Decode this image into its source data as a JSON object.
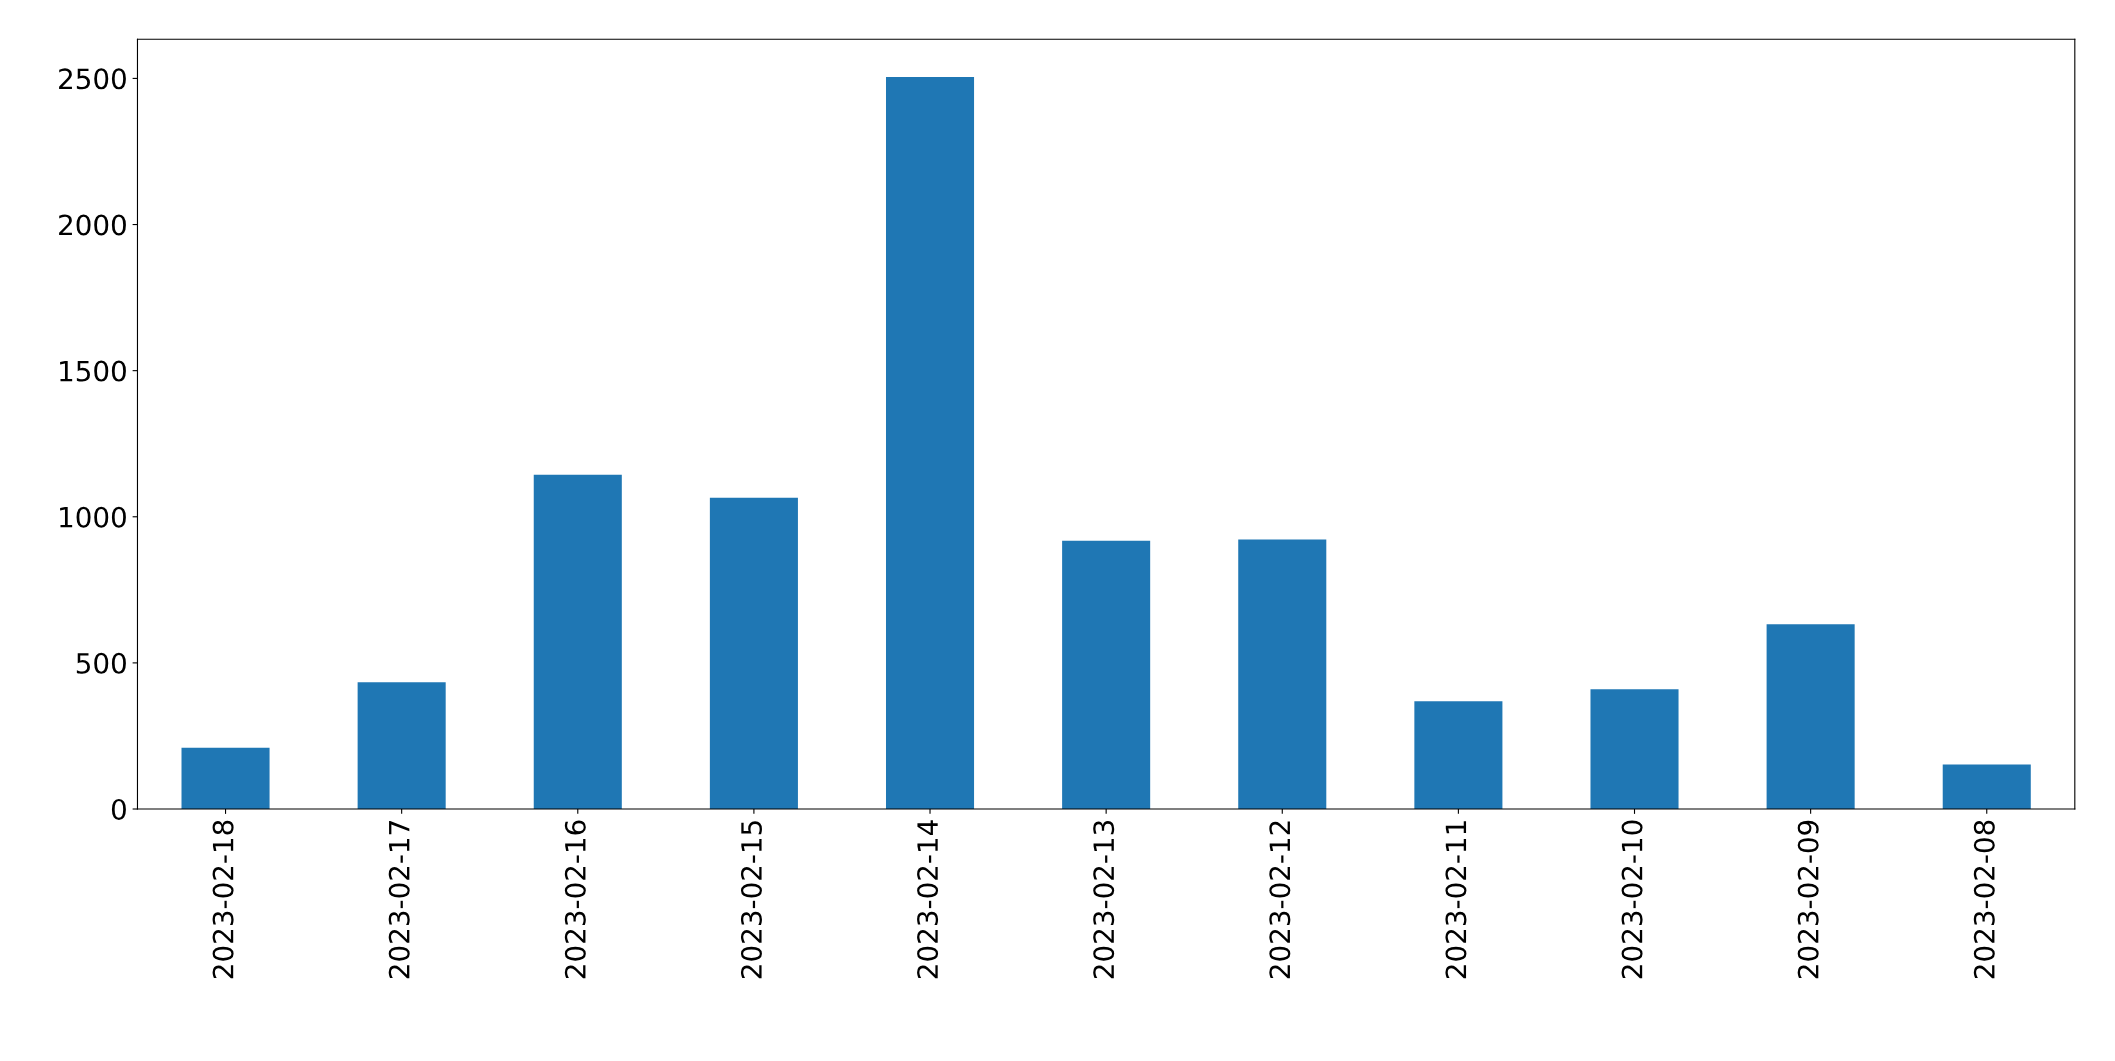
{
  "chart_data": {
    "type": "bar",
    "categories": [
      "2023-02-18",
      "2023-02-17",
      "2023-02-16",
      "2023-02-15",
      "2023-02-14",
      "2023-02-13",
      "2023-02-12",
      "2023-02-11",
      "2023-02-10",
      "2023-02-09",
      "2023-02-08"
    ],
    "values": [
      210,
      434,
      1144,
      1065,
      2505,
      918,
      922,
      369,
      410,
      632,
      152
    ],
    "color": "#1f77b4",
    "ylim": [
      0,
      2634
    ],
    "yticks": [
      0,
      500,
      1000,
      1500,
      2000,
      2500
    ],
    "grid": false,
    "legend": false
  }
}
